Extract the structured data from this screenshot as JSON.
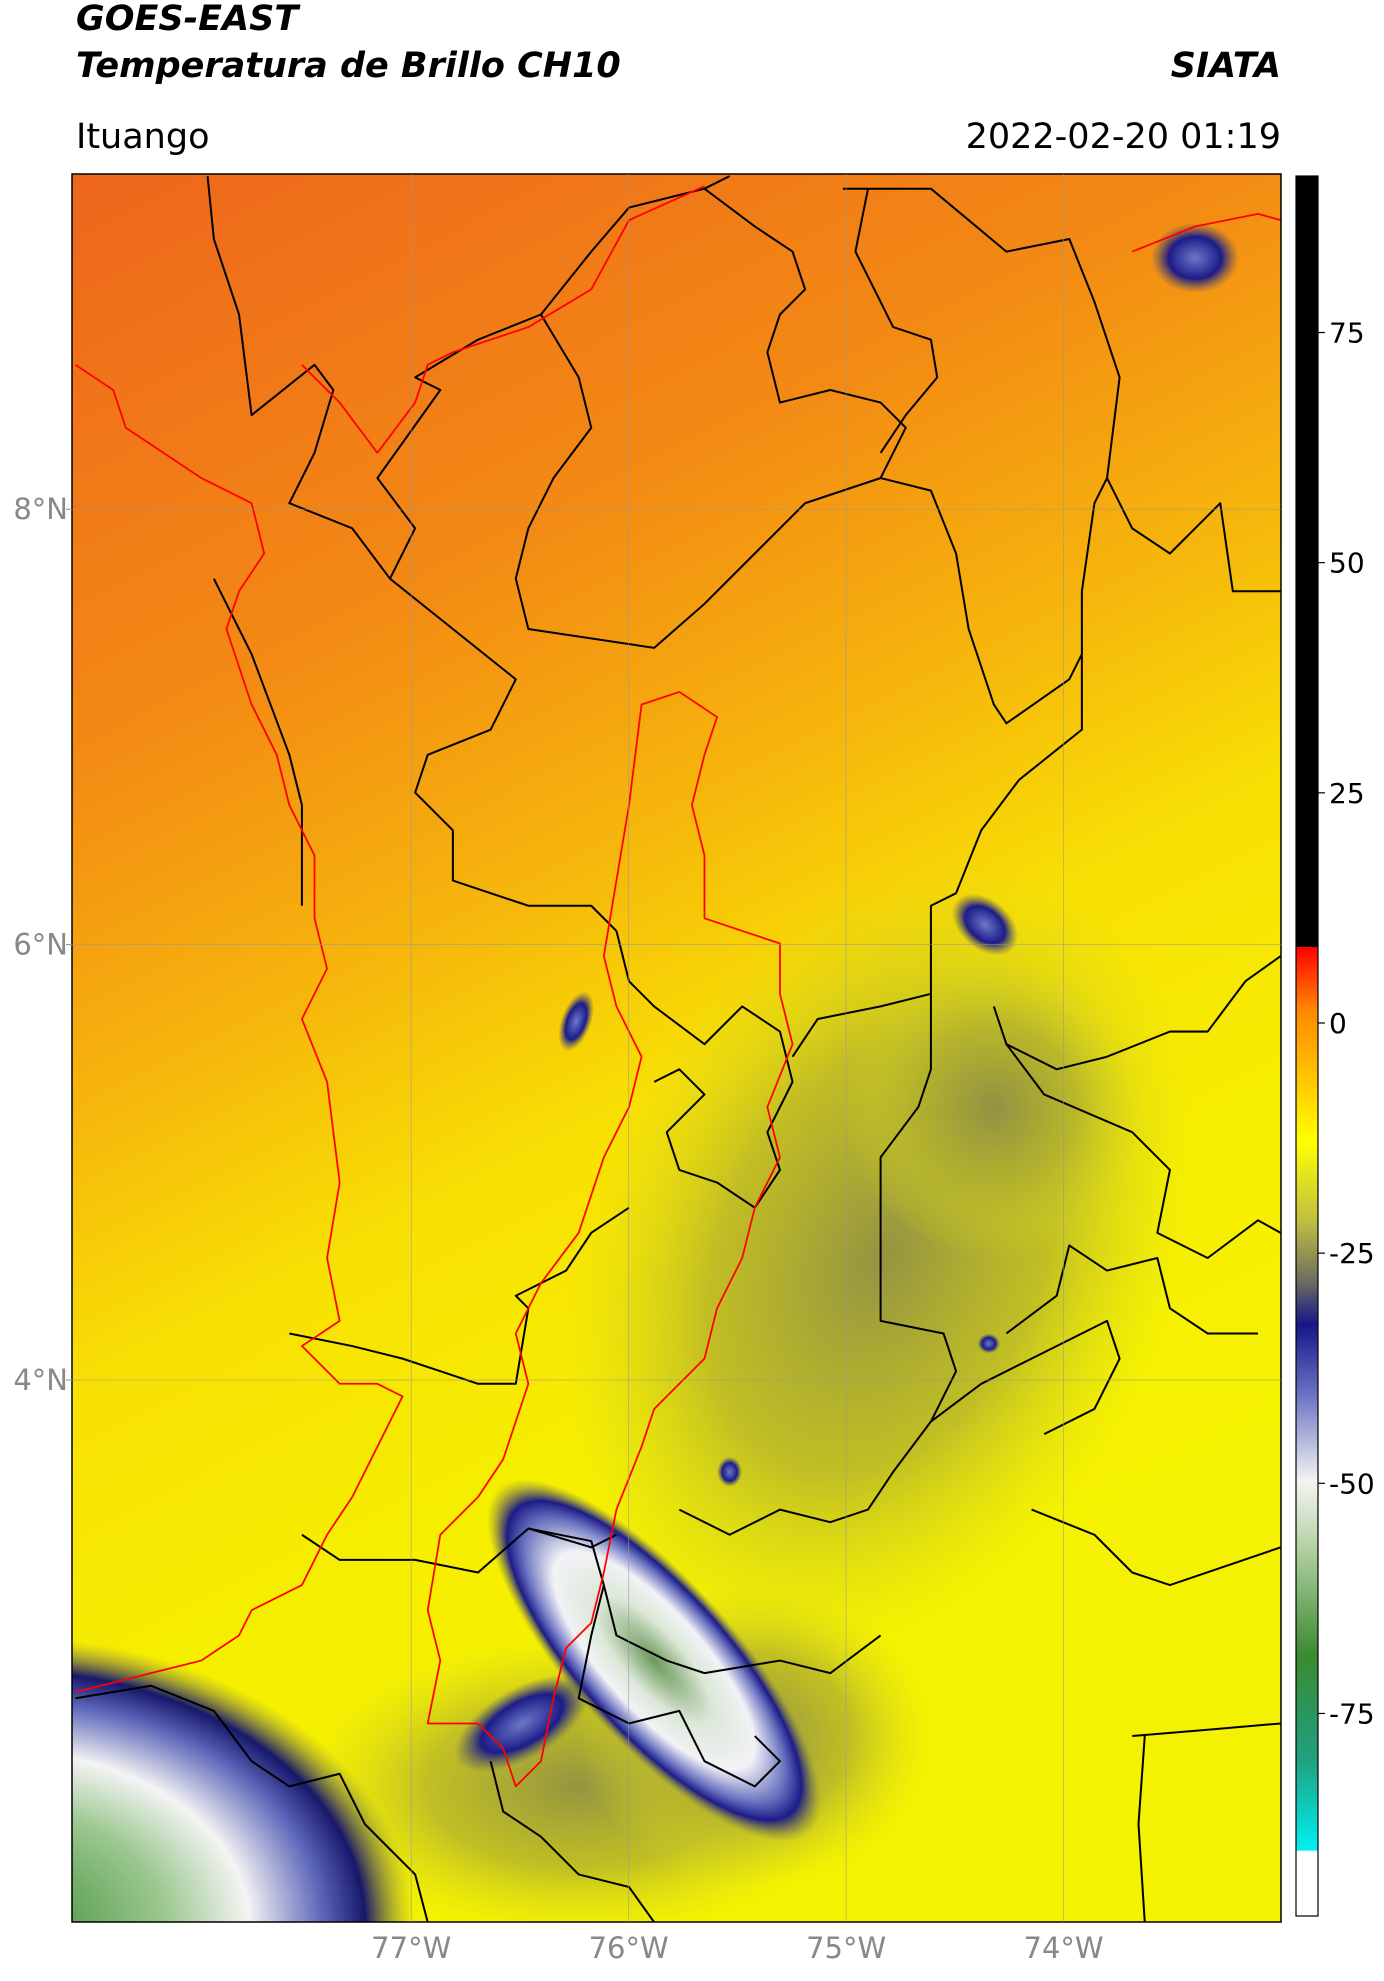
{
  "header": {
    "title": "GOES-EAST",
    "subtitle": "Temperatura de Brillo CH10",
    "brand": "SIATA",
    "location": "Ituango",
    "timestamp": "2022-02-20 01:19"
  },
  "map": {
    "xlim": [
      -78.56,
      -73.0
    ],
    "ylim": [
      1.51,
      9.54
    ],
    "xticks": [
      {
        "value": -77,
        "label": "77°W"
      },
      {
        "value": -76,
        "label": "76°W"
      },
      {
        "value": -75,
        "label": "75°W"
      },
      {
        "value": -74,
        "label": "74°W"
      }
    ],
    "yticks": [
      {
        "value": 8,
        "label": "8°N"
      },
      {
        "value": 6,
        "label": "6°N"
      },
      {
        "value": 4,
        "label": "4°N"
      }
    ],
    "grid": true
  },
  "colorbar": {
    "lim": [
      -97,
      92
    ],
    "ticks": [
      75,
      50,
      25,
      0,
      -25,
      -50,
      -75
    ]
  }
}
